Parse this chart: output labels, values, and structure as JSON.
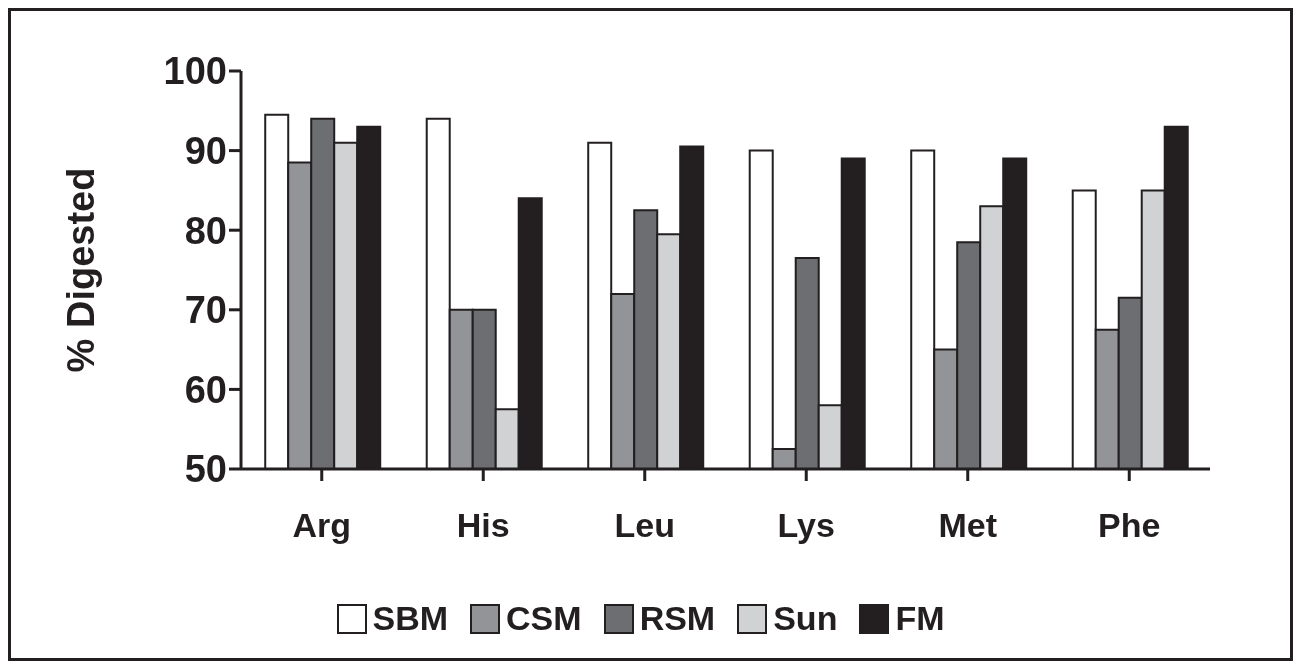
{
  "chart_data": {
    "type": "bar",
    "ylabel": "% Digested",
    "categories": [
      "Arg",
      "His",
      "Leu",
      "Lys",
      "Met",
      "Phe"
    ],
    "series": [
      {
        "name": "SBM",
        "color": "#ffffff",
        "values": [
          94.5,
          94,
          91,
          90,
          90,
          85
        ]
      },
      {
        "name": "CSM",
        "color": "#939498",
        "values": [
          88.5,
          70,
          72,
          52.5,
          65,
          67.5
        ]
      },
      {
        "name": "RSM",
        "color": "#6d6e71",
        "values": [
          94,
          70,
          82.5,
          76.5,
          78.5,
          71.5
        ]
      },
      {
        "name": "Sun",
        "color": "#d1d2d4",
        "values": [
          91,
          57.5,
          79.5,
          58,
          83,
          85
        ]
      },
      {
        "name": "FM",
        "color": "#231f20",
        "values": [
          93,
          84,
          90.5,
          89,
          89,
          93
        ]
      }
    ],
    "ylim": [
      50,
      100
    ],
    "yticks": [
      50,
      60,
      70,
      80,
      90,
      100
    ],
    "grid": false,
    "legend": "bottom"
  }
}
